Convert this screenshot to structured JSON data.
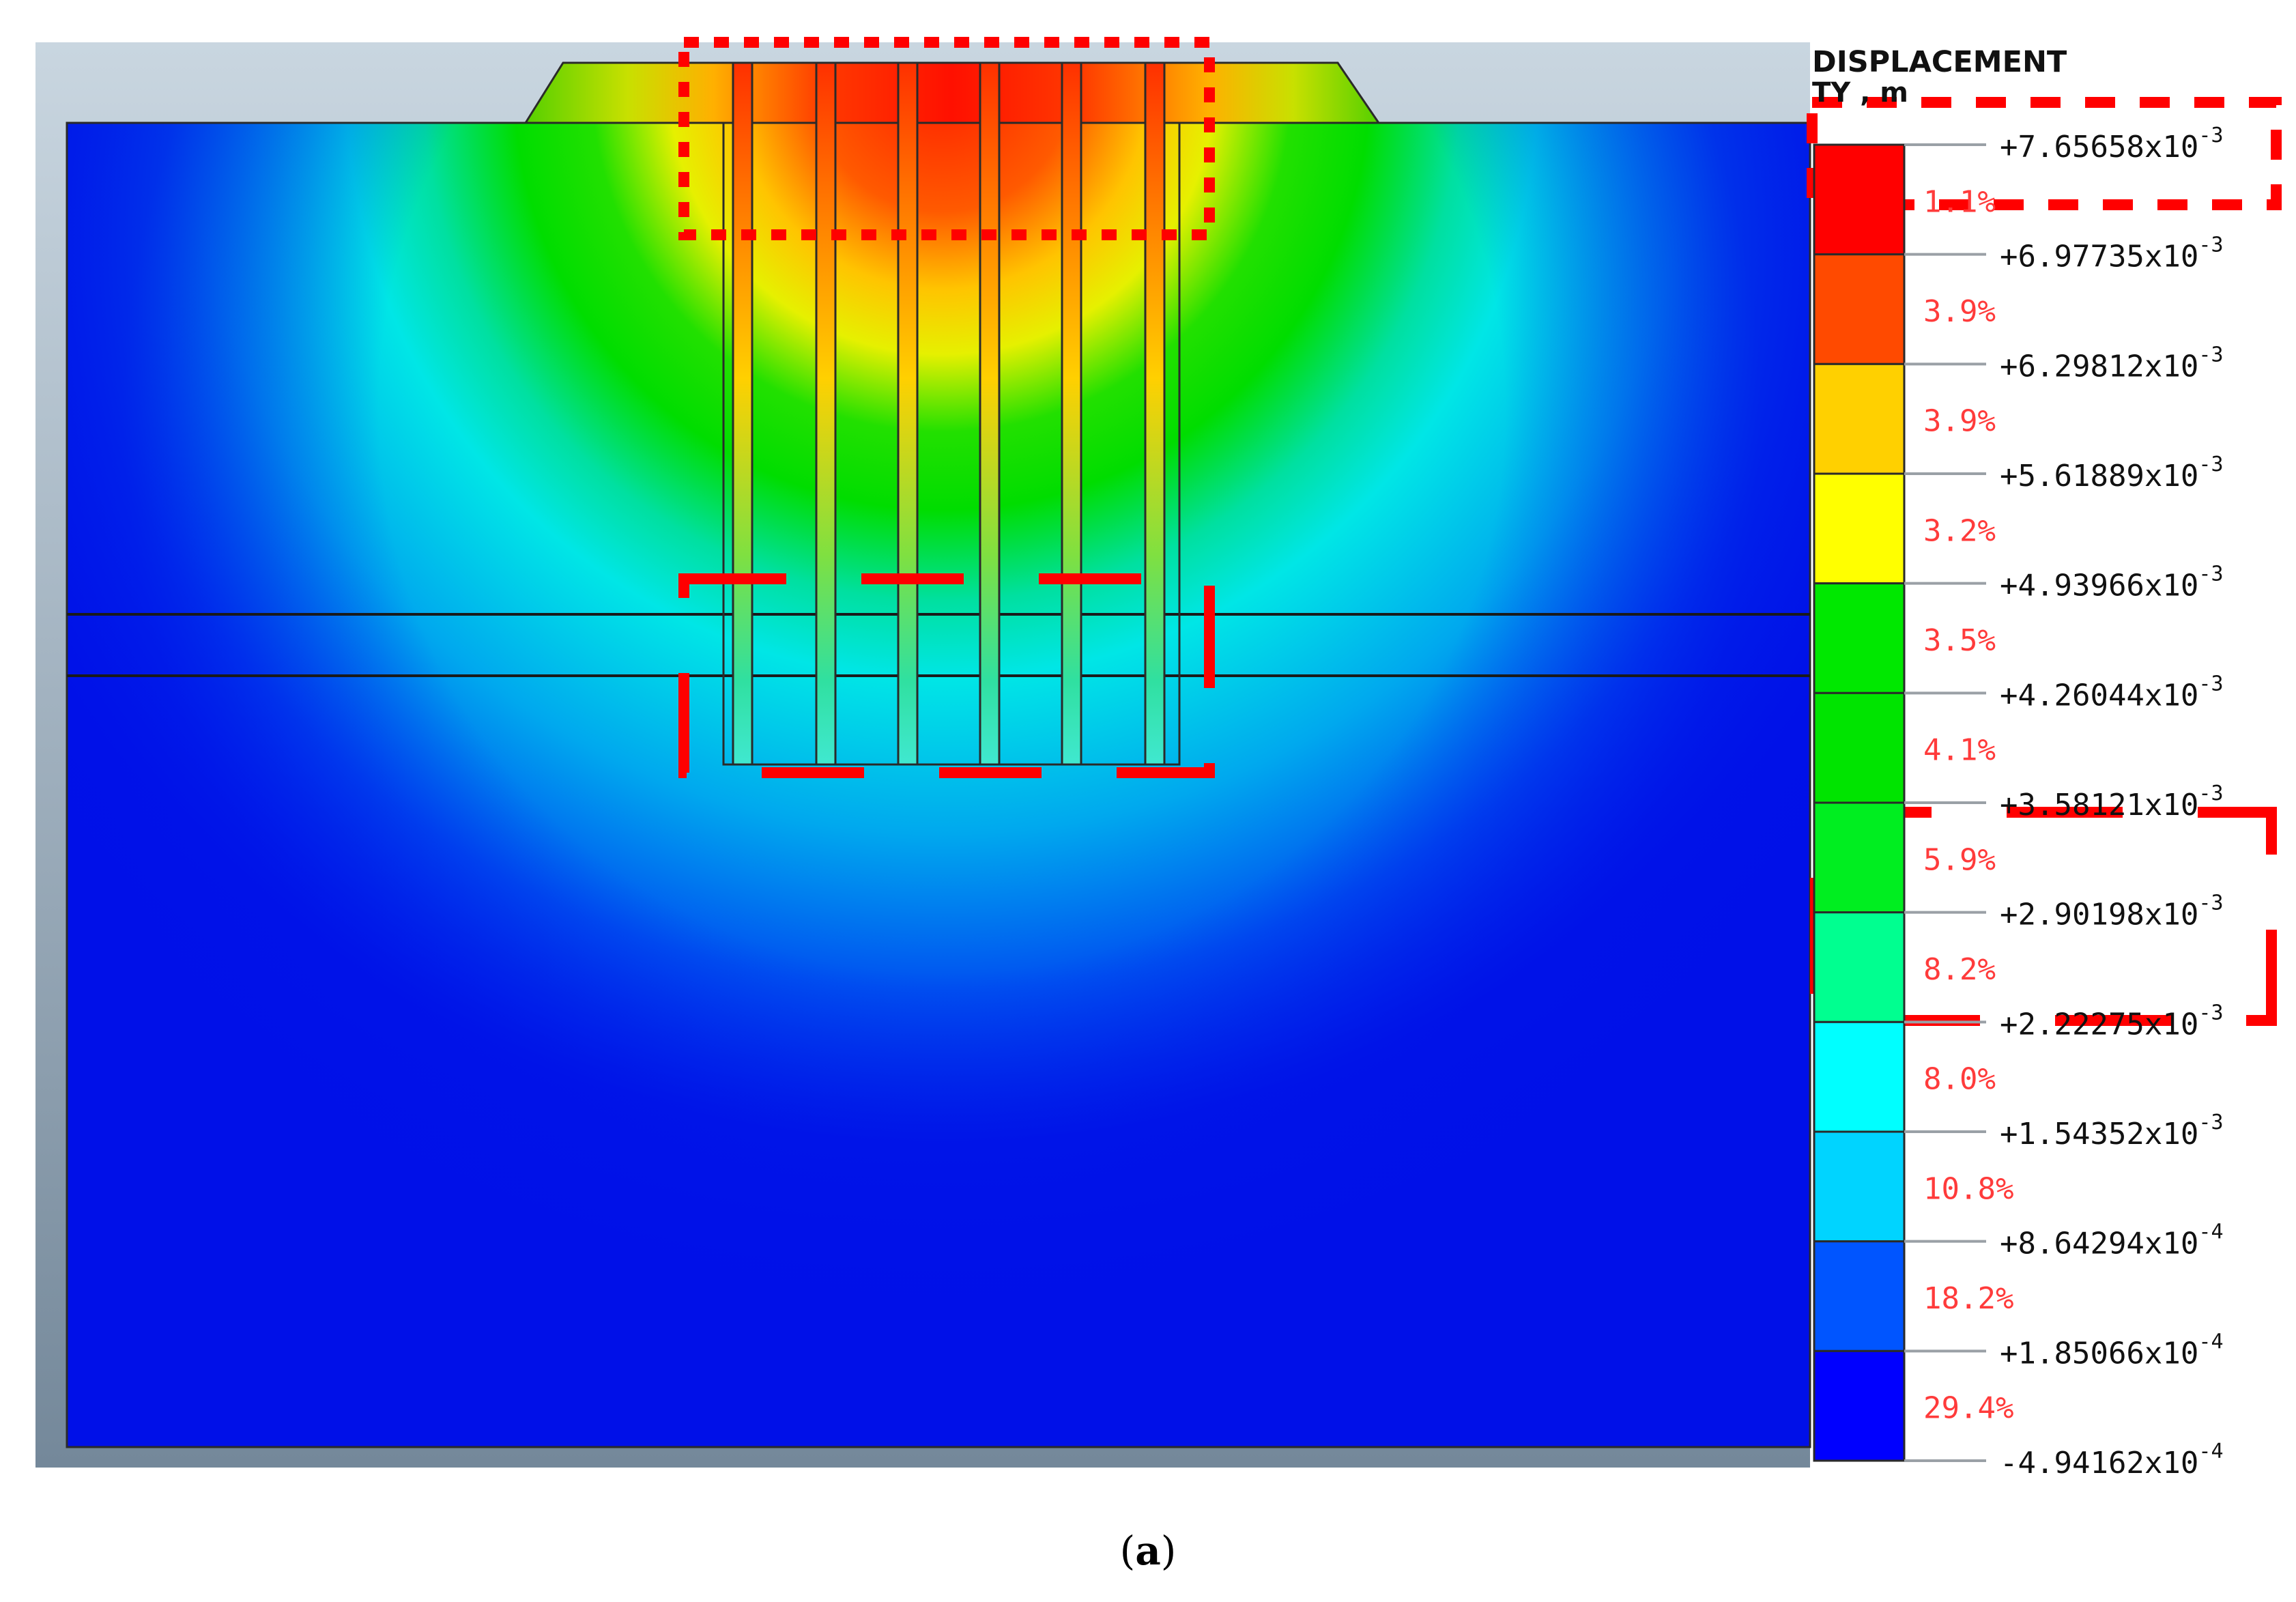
{
  "legend": {
    "title": "DISPLACEMENT",
    "unit": "TY , m",
    "tick_labels": [
      {
        "mantissa": "+7.65658",
        "exponent": "-3"
      },
      {
        "mantissa": "+6.97735",
        "exponent": "-3"
      },
      {
        "mantissa": "+6.29812",
        "exponent": "-3"
      },
      {
        "mantissa": "+5.61889",
        "exponent": "-3"
      },
      {
        "mantissa": "+4.93966",
        "exponent": "-3"
      },
      {
        "mantissa": "+4.26044",
        "exponent": "-3"
      },
      {
        "mantissa": "+3.58121",
        "exponent": "-3"
      },
      {
        "mantissa": "+2.90198",
        "exponent": "-3"
      },
      {
        "mantissa": "+2.22275",
        "exponent": "-3"
      },
      {
        "mantissa": "+1.54352",
        "exponent": "-3"
      },
      {
        "mantissa": "+8.64294",
        "exponent": "-4"
      },
      {
        "mantissa": "+1.85066",
        "exponent": "-4"
      },
      {
        "mantissa": "-4.94162",
        "exponent": "-4"
      }
    ],
    "bands": [
      {
        "percent": "1.1%",
        "color": "#ff0000"
      },
      {
        "percent": "3.9%",
        "color": "#ff4a00"
      },
      {
        "percent": "3.9%",
        "color": "#ffd000"
      },
      {
        "percent": "3.2%",
        "color": "#ffff00"
      },
      {
        "percent": "3.5%",
        "color": "#00e800"
      },
      {
        "percent": "4.1%",
        "color": "#00e400"
      },
      {
        "percent": "5.9%",
        "color": "#00ee20"
      },
      {
        "percent": "8.2%",
        "color": "#00ff90"
      },
      {
        "percent": "8.0%",
        "color": "#00ffff"
      },
      {
        "percent": "10.8%",
        "color": "#00d4ff"
      },
      {
        "percent": "18.2%",
        "color": "#0055ff"
      },
      {
        "percent": "29.4%",
        "color": "#0000ff"
      }
    ],
    "multiplier": "x10"
  },
  "colors": {
    "highlight": "#ff0000",
    "soil_low": "#0010e8",
    "soil_high": "#ff1e00",
    "band_percent_text": "#ff3b3b"
  },
  "caption": {
    "open": "(",
    "letter": "a",
    "close": ")"
  }
}
